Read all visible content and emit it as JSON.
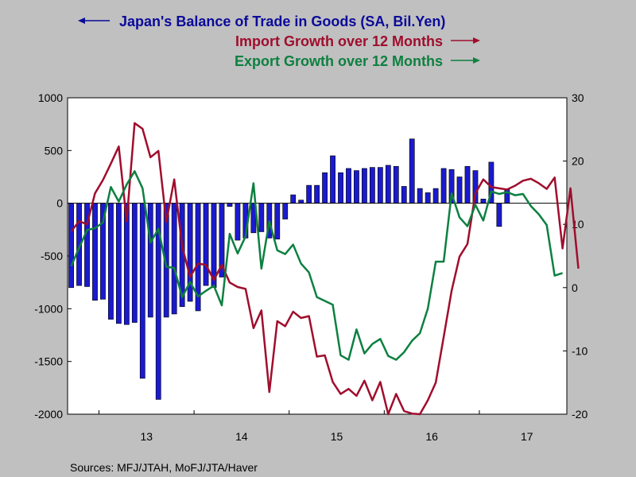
{
  "chart_data": {
    "type": "bar+line",
    "legend": [
      {
        "label": "Japan's Balance of Trade in Goods (SA, Bil.Yen)",
        "color": "#0a0a9a",
        "arrow": "left"
      },
      {
        "label": "Import Growth over 12 Months",
        "color": "#a00d2d",
        "arrow": "right"
      },
      {
        "label": "Export Growth over 12 Months",
        "color": "#0d8040",
        "arrow": "right"
      }
    ],
    "x_labels": [
      "13",
      "14",
      "15",
      "16",
      "17"
    ],
    "x_range": [
      2012.67,
      2017.92
    ],
    "left_axis": {
      "min": -2000,
      "max": 1000,
      "ticks": [
        1000,
        500,
        0,
        -500,
        -1000,
        -1500,
        -2000
      ]
    },
    "right_axis": {
      "min": -20,
      "max": 30,
      "ticks": [
        30,
        20,
        10,
        0,
        -10,
        -20
      ]
    },
    "start_month": "2012-09",
    "series": [
      {
        "name": "Japan's Balance of Trade in Goods (SA, Bil.Yen)",
        "kind": "bar",
        "axis": "left",
        "values": [
          -800,
          -780,
          -790,
          -920,
          -910,
          -1100,
          -1140,
          -1150,
          -1130,
          -1660,
          -1080,
          -1860,
          -1080,
          -1050,
          -980,
          -930,
          -1020,
          -780,
          -800,
          -700,
          -30,
          -350,
          -330,
          -280,
          -270,
          -330,
          -340,
          -150,
          80,
          30,
          170,
          170,
          290,
          450,
          290,
          330,
          310,
          330,
          340,
          340,
          360,
          350,
          160,
          610,
          140,
          100,
          140,
          330,
          320,
          250,
          350,
          310,
          40,
          390,
          -220,
          130
        ]
      },
      {
        "name": "Import Growth over 12 Months",
        "kind": "line",
        "axis": "right",
        "values": [
          8.9,
          10.5,
          10.0,
          14.9,
          17.0,
          19.6,
          22.3,
          10.5,
          26.0,
          25.1,
          20.6,
          21.6,
          10.4,
          17.1,
          6.5,
          1.7,
          3.8,
          3.6,
          1.2,
          3.6,
          0.8,
          0.1,
          -0.2,
          -6.4,
          -3.6,
          -16.5,
          -5.3,
          -6.1,
          -3.8,
          -4.8,
          -4.5,
          -10.9,
          -10.7,
          -14.9,
          -16.8,
          -16.0,
          -17.1,
          -14.7,
          -17.8,
          -14.9,
          -20.0,
          -16.8,
          -19.5,
          -19.9,
          -20.0,
          -17.8,
          -15.0,
          -7.8,
          -0.5,
          4.9,
          6.9,
          14.9,
          17.1,
          15.9,
          15.7,
          15.5,
          16.1,
          16.9,
          17.2,
          16.5,
          15.6,
          17.4,
          6.2,
          15.7,
          3.0
        ]
      },
      {
        "name": "Export Growth over 12 Months",
        "kind": "line",
        "axis": "right",
        "values": [
          3.4,
          6.3,
          9.1,
          9.4,
          10.3,
          15.9,
          13.6,
          16.3,
          18.4,
          15.7,
          7.1,
          9.3,
          3.3,
          3.1,
          -1.5,
          0.9,
          -1.4,
          -0.5,
          0.3,
          -2.8,
          8.5,
          5.4,
          8.1,
          16.5,
          3.0,
          10.5,
          5.9,
          5.3,
          6.8,
          3.8,
          2.4,
          -1.5,
          -2.1,
          -2.7,
          -10.7,
          -11.4,
          -6.6,
          -10.4,
          -8.9,
          -8.1,
          -10.8,
          -11.4,
          -10.2,
          -8.4,
          -7.2,
          -3.3,
          4.1,
          4.1,
          14.9,
          11.1,
          9.7,
          13.1,
          10.6,
          15.2,
          14.8,
          15.1,
          14.6,
          14.8,
          12.9,
          11.6,
          9.9,
          1.9,
          2.3
        ]
      }
    ],
    "zero_line": true,
    "grid": false,
    "legend_placement": "top-center"
  },
  "footer": {
    "sources": "Sources:  MFJ/JTAH, MoFJ/JTA/Haver"
  }
}
